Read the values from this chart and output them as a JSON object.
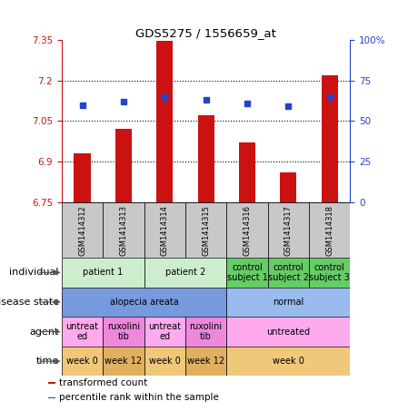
{
  "title": "GDS5275 / 1556659_at",
  "samples": [
    "GSM1414312",
    "GSM1414313",
    "GSM1414314",
    "GSM1414315",
    "GSM1414316",
    "GSM1414317",
    "GSM1414318"
  ],
  "bar_values": [
    6.93,
    7.02,
    7.345,
    7.07,
    6.97,
    6.86,
    7.22
  ],
  "dot_values": [
    60,
    62,
    65,
    63,
    61,
    59,
    65
  ],
  "ylim_left": [
    6.75,
    7.35
  ],
  "yticks_left": [
    6.75,
    6.9,
    7.05,
    7.2,
    7.35
  ],
  "ytick_labels_left": [
    "6.75",
    "6.9",
    "7.05",
    "7.2",
    "7.35"
  ],
  "ylim_right": [
    0,
    100
  ],
  "yticks_right": [
    0,
    25,
    50,
    75,
    100
  ],
  "ytick_labels_right": [
    "0",
    "25",
    "50",
    "75",
    "100%"
  ],
  "bar_color": "#cc1111",
  "dot_color": "#2244cc",
  "background_color": "#ffffff",
  "plot_bg_color": "#ffffff",
  "grid_lines": [
    6.9,
    7.05,
    7.2
  ],
  "annotation_rows": [
    {
      "label": "individual",
      "cells": [
        {
          "text": "patient 1",
          "span": 2,
          "color": "#cceecc"
        },
        {
          "text": "patient 2",
          "span": 2,
          "color": "#cceecc"
        },
        {
          "text": "control\nsubject 1",
          "span": 1,
          "color": "#66cc66"
        },
        {
          "text": "control\nsubject 2",
          "span": 1,
          "color": "#66cc66"
        },
        {
          "text": "control\nsubject 3",
          "span": 1,
          "color": "#66cc66"
        }
      ]
    },
    {
      "label": "disease state",
      "cells": [
        {
          "text": "alopecia areata",
          "span": 4,
          "color": "#7799dd"
        },
        {
          "text": "normal",
          "span": 3,
          "color": "#99bbee"
        }
      ]
    },
    {
      "label": "agent",
      "cells": [
        {
          "text": "untreat\ned",
          "span": 1,
          "color": "#ffaaee"
        },
        {
          "text": "ruxolini\ntib",
          "span": 1,
          "color": "#ee88dd"
        },
        {
          "text": "untreat\ned",
          "span": 1,
          "color": "#ffaaee"
        },
        {
          "text": "ruxolini\ntib",
          "span": 1,
          "color": "#ee88dd"
        },
        {
          "text": "untreated",
          "span": 3,
          "color": "#ffaaee"
        }
      ]
    },
    {
      "label": "time",
      "cells": [
        {
          "text": "week 0",
          "span": 1,
          "color": "#f0c87a"
        },
        {
          "text": "week 12",
          "span": 1,
          "color": "#e0b060"
        },
        {
          "text": "week 0",
          "span": 1,
          "color": "#f0c87a"
        },
        {
          "text": "week 12",
          "span": 1,
          "color": "#e0b060"
        },
        {
          "text": "week 0",
          "span": 3,
          "color": "#f0c87a"
        }
      ]
    }
  ],
  "sample_bg_color": "#c8c8c8",
  "legend_items": [
    {
      "color": "#cc1111",
      "label": "transformed count"
    },
    {
      "color": "#2244cc",
      "label": "percentile rank within the sample"
    }
  ],
  "label_fontsize": 8,
  "cell_fontsize": 7,
  "tick_fontsize": 7.5
}
